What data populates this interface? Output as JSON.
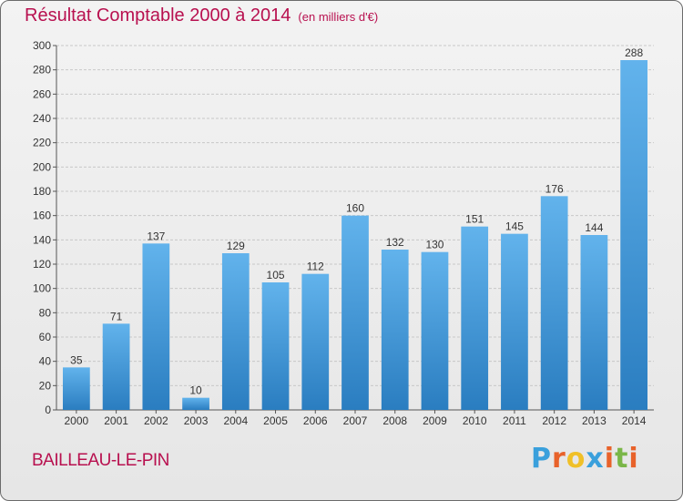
{
  "header": {
    "title": "Résultat Comptable 2000 à 2014",
    "subtitle": "(en milliers d'€)"
  },
  "footer": {
    "commune": "BAILLEAU-LE-PIN",
    "logo_text": "Proxiti",
    "logo_colors": [
      "#3aa0dc",
      "#e8622a",
      "#f0c028",
      "#3aa0dc",
      "#e8622a",
      "#7ab648",
      "#e8622a"
    ]
  },
  "colors": {
    "bar_light": "#62b3ec",
    "bar_dark": "#2a7dc0",
    "title": "#b8104f",
    "grid": "#c8c8c8"
  },
  "chart_data": {
    "type": "bar",
    "title": "Résultat Comptable 2000 à 2014",
    "subtitle": "(en milliers d'€)",
    "xlabel": "",
    "ylabel": "",
    "categories": [
      "2000",
      "2001",
      "2002",
      "2003",
      "2004",
      "2005",
      "2006",
      "2007",
      "2008",
      "2009",
      "2010",
      "2011",
      "2012",
      "2013",
      "2014"
    ],
    "values": [
      35,
      71,
      137,
      10,
      129,
      105,
      112,
      160,
      132,
      130,
      151,
      145,
      176,
      144,
      288
    ],
    "ylim": [
      0,
      300
    ],
    "yticks": [
      0,
      20,
      40,
      60,
      80,
      100,
      120,
      140,
      160,
      180,
      200,
      220,
      240,
      260,
      280,
      300
    ],
    "grid": true
  }
}
